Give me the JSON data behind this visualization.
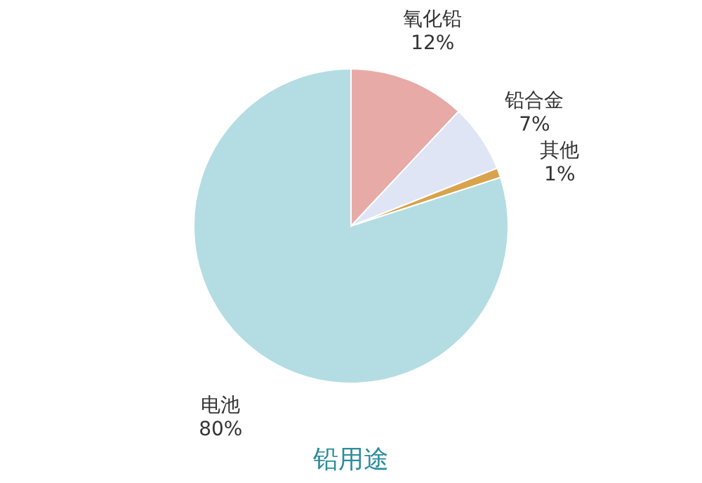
{
  "chart_data": {
    "type": "pie",
    "title": "铅用途",
    "categories": [
      "氧化铅",
      "铅合金",
      "其他",
      "电池"
    ],
    "values": [
      12,
      7,
      1,
      80
    ],
    "value_labels": [
      "12%",
      "7%",
      "1%",
      "80%"
    ],
    "colors": [
      "#e8aaa6",
      "#dfe5f5",
      "#d9a24c",
      "#b3dde3"
    ]
  }
}
